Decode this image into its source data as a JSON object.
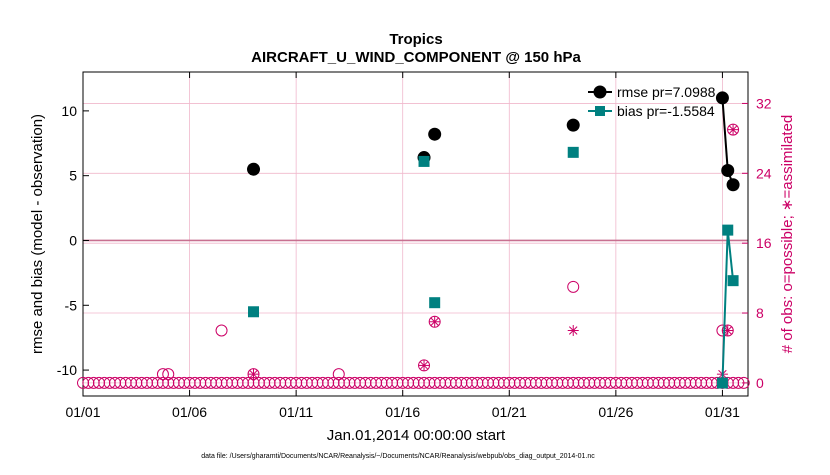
{
  "figure": {
    "title": "Tropics",
    "subtitle": "AIRCRAFT_U_WIND_COMPONENT @ 150 hPa",
    "footer": "data file: /Users/gharamti/Documents/NCAR/Reanalysis/~/Documents/NCAR/Reanalysis/webpub/obs_diag_output_2014-01.nc"
  },
  "chart_data": {
    "type": "line",
    "title": "Tropics",
    "subtitle": "AIRCRAFT_U_WIND_COMPONENT @ 150 hPa",
    "xlabel": "Jan.01,2014 00:00:00 start",
    "ylabel": "rmse and bias (model - observation)",
    "y2label": "# of obs: o=possible; ∗=assimilated",
    "xlim": [
      1,
      32.2
    ],
    "ylim": [
      -12,
      13
    ],
    "y2lim": [
      -1.5,
      35.6
    ],
    "x_ticks": [
      1,
      6,
      11,
      16,
      21,
      26,
      31
    ],
    "x_tick_labels": [
      "01/01",
      "01/06",
      "01/11",
      "01/16",
      "01/21",
      "01/26",
      "01/31"
    ],
    "y_ticks": [
      -10,
      -5,
      0,
      5,
      10
    ],
    "y_tick_labels": [
      "-10",
      "-5",
      "0",
      "5",
      "10"
    ],
    "y2_ticks": [
      0,
      8,
      16,
      24,
      32
    ],
    "y2_tick_labels": [
      "0",
      "8",
      "16",
      "24",
      "32"
    ],
    "grid": true,
    "zero_line": 0,
    "legend": {
      "placement": "top-right",
      "entries": [
        "rmse pr=7.0988",
        "bias pr=-1.5584"
      ]
    },
    "colors": {
      "rmse": "#000000",
      "bias": "#008080",
      "obs": "#cc0066",
      "zero_line": "#c87090",
      "grid": "#f0b8cc",
      "axis": "#000000"
    },
    "series": [
      {
        "name": "rmse pr=7.0988",
        "axis": "left",
        "marker": "filled-circle",
        "color": "#000000",
        "points": [
          [
            9,
            5.5
          ],
          [
            17,
            6.4
          ],
          [
            17.5,
            8.2
          ],
          [
            24,
            8.9
          ],
          [
            31,
            11.0
          ],
          [
            31.25,
            5.4
          ],
          [
            31.5,
            4.3
          ]
        ]
      },
      {
        "name": "bias pr=-1.5584",
        "axis": "left",
        "marker": "filled-square",
        "color": "#008080",
        "points": [
          [
            9,
            -5.5
          ],
          [
            17,
            6.1
          ],
          [
            17.5,
            -4.8
          ],
          [
            24,
            6.8
          ],
          [
            31,
            -11.0
          ],
          [
            31.25,
            0.8
          ],
          [
            31.5,
            -3.1
          ]
        ]
      }
    ],
    "obs_possible": {
      "axis": "right",
      "marker": "open-circle",
      "color": "#cc0066",
      "baseline_count": 0,
      "baseline_x_start": 1,
      "baseline_x_end": 32.2,
      "baseline_x_step": 0.25,
      "points": [
        [
          4.75,
          1
        ],
        [
          5,
          1
        ],
        [
          7.5,
          6
        ],
        [
          9,
          1
        ],
        [
          13,
          1
        ],
        [
          17,
          2
        ],
        [
          17.5,
          7
        ],
        [
          24,
          11
        ],
        [
          31,
          6
        ],
        [
          31.25,
          6
        ],
        [
          31.5,
          29
        ]
      ]
    },
    "obs_assimilated": {
      "axis": "right",
      "marker": "asterisk",
      "color": "#cc0066",
      "points": [
        [
          9,
          1
        ],
        [
          17,
          2
        ],
        [
          17.5,
          7
        ],
        [
          24,
          6
        ],
        [
          31,
          1
        ],
        [
          31.25,
          6
        ],
        [
          31.5,
          29
        ]
      ]
    },
    "connected_series_from_x": 31
  }
}
